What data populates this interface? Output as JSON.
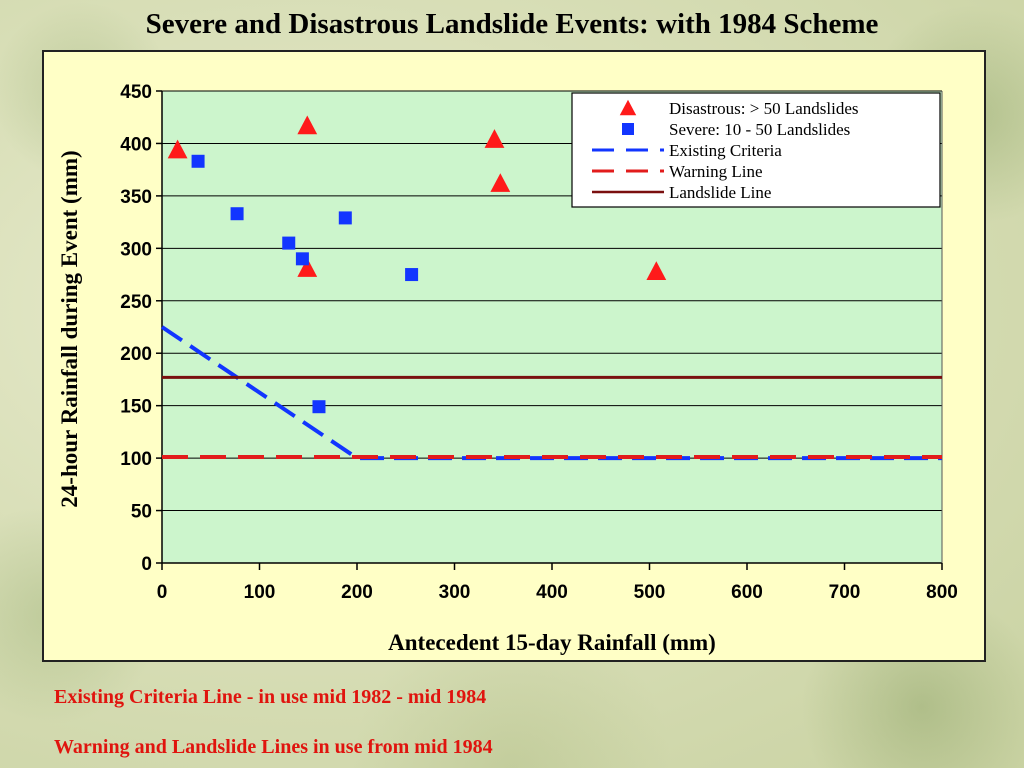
{
  "slide": {
    "title": "Severe and Disastrous Landslide Events: with 1984 Scheme",
    "caption_1": "Existing Criteria Line - in use mid 1982 - mid 1984",
    "caption_2": "Warning and Landslide Lines in use from mid 1984"
  },
  "colors": {
    "plot_background": "#ccf5cc",
    "chart_background": "#ffffc6",
    "disastrous": "#ff1a1a",
    "severe": "#1235ff",
    "existing_criteria": "#1235ff",
    "warning_line": "#e21c1c",
    "landslide_line": "#7a0f0f",
    "caption_text": "#e0140e"
  },
  "chart_data": {
    "type": "scatter",
    "xlabel": "Antecedent 15-day Rainfall (mm)",
    "ylabel": "24-hour Rainfall during Event (mm)",
    "xlim": [
      0,
      800
    ],
    "ylim": [
      0,
      450
    ],
    "x_ticks": [
      0,
      100,
      200,
      300,
      400,
      500,
      600,
      700,
      800
    ],
    "y_ticks": [
      0,
      50,
      100,
      150,
      200,
      250,
      300,
      350,
      400,
      450
    ],
    "grid": "horizontal",
    "legend_position": "top-right",
    "series": [
      {
        "name": "Disastrous: > 50 Landslides",
        "kind": "scatter",
        "marker": "triangle",
        "color": "#ff1a1a",
        "points": [
          [
            16,
            393
          ],
          [
            149,
            416
          ],
          [
            149,
            280
          ],
          [
            341,
            403
          ],
          [
            347,
            361
          ],
          [
            507,
            277
          ]
        ]
      },
      {
        "name": "Severe:  10 - 50 Landslides",
        "kind": "scatter",
        "marker": "square",
        "color": "#1235ff",
        "points": [
          [
            37,
            383
          ],
          [
            77,
            333
          ],
          [
            130,
            305
          ],
          [
            144,
            290
          ],
          [
            188,
            329
          ],
          [
            256,
            275
          ],
          [
            161,
            149
          ]
        ]
      },
      {
        "name": "Existing Criteria",
        "kind": "line",
        "style": "dashed",
        "color": "#1235ff",
        "points": [
          [
            0,
            225
          ],
          [
            200,
            100
          ],
          [
            800,
            100
          ]
        ]
      },
      {
        "name": "Warning Line",
        "kind": "line",
        "style": "dashed",
        "color": "#e21c1c",
        "points": [
          [
            0,
            101
          ],
          [
            800,
            101
          ]
        ]
      },
      {
        "name": "Landslide Line",
        "kind": "line",
        "style": "solid",
        "color": "#7a0f0f",
        "points": [
          [
            0,
            177
          ],
          [
            800,
            177
          ]
        ]
      }
    ]
  }
}
